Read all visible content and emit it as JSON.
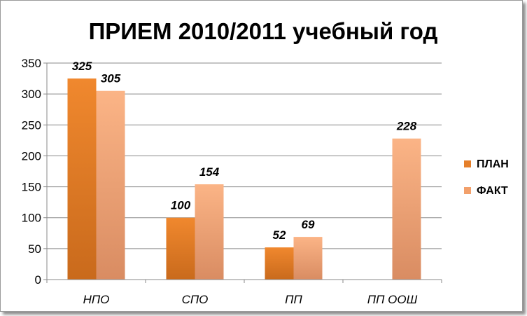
{
  "chart_data": {
    "type": "bar",
    "title": "ПРИЕМ 2010/2011 учебный год",
    "categories": [
      "НПО",
      "СПО",
      "ПП",
      "ПП ООШ"
    ],
    "series": [
      {
        "name": "ПЛАН",
        "values": [
          325,
          100,
          52,
          null
        ],
        "color": "#e57f2a"
      },
      {
        "name": "ФАКТ",
        "values": [
          305,
          154,
          69,
          228
        ],
        "color": "#f2a06b"
      }
    ],
    "ylim": [
      0,
      350
    ],
    "yticks": [
      0,
      50,
      100,
      150,
      200,
      250,
      300,
      350
    ],
    "grid": true,
    "legend_position": "right"
  }
}
